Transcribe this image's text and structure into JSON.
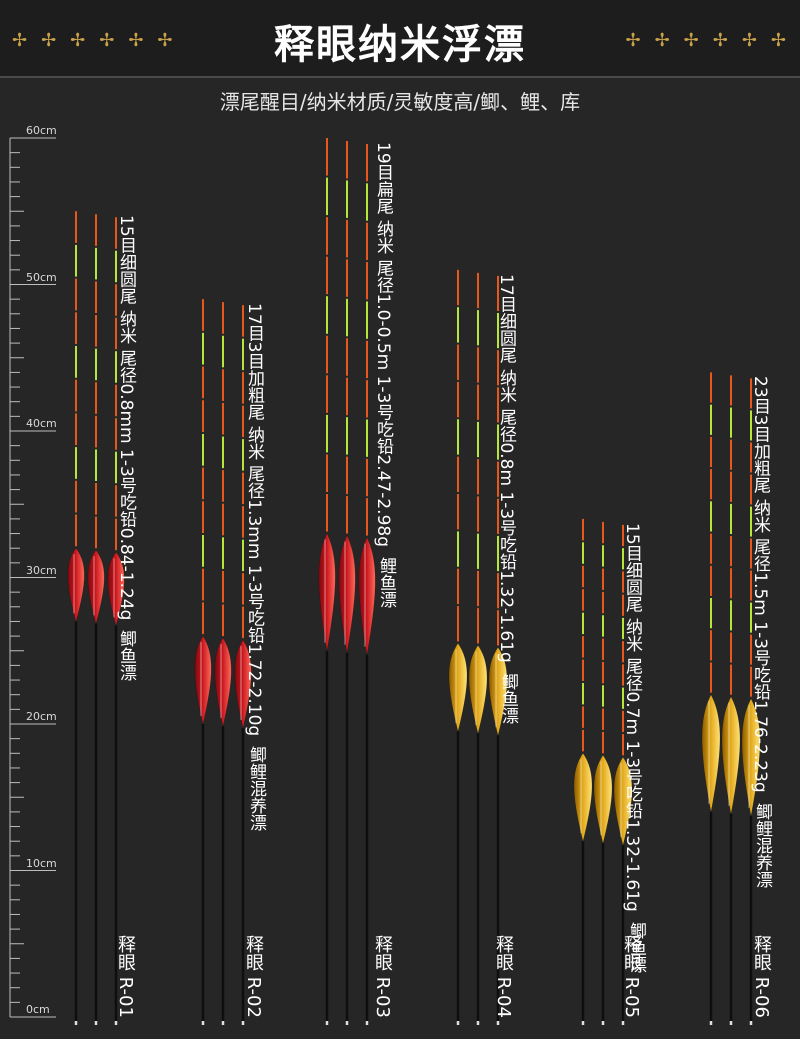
{
  "header": {
    "title": "释眼纳米浮漂",
    "subtitle": "漂尾醒目/纳米材质/灵敏度高/鲫、鲤、库",
    "deco_icon": "sparkle-cross-icon"
  },
  "ruler": {
    "unit": "cm",
    "labels": [
      "60cm",
      "50cm",
      "40cm",
      "30cm",
      "20cm",
      "10cm",
      "0cm"
    ],
    "min": 0,
    "max": 60
  },
  "colors": {
    "red_body": "#c8141c",
    "gold_body": "#e0a616",
    "tip_orange": "#e8581c",
    "tip_green": "#b6e63a",
    "stem": "#0e0e0e"
  },
  "products": [
    {
      "code": "释眼 R-01",
      "spec": "15目细圆尾 纳米 尾径0.8mm 1-3号吃铅0.84-1.24g",
      "type": "鲫鱼漂",
      "color": "red",
      "tip_top_cm": 55,
      "body_top_cm": 32,
      "body_bottom_cm": 27
    },
    {
      "code": "释眼 R-02",
      "spec": "17目3目加粗尾 纳米 尾径1.3mm 1-3号吃铅1.72-2.10g",
      "type": "鲫鲤混养漂",
      "color": "red",
      "tip_top_cm": 49,
      "body_top_cm": 26,
      "body_bottom_cm": 20
    },
    {
      "code": "释眼 R-03",
      "spec": "19目扁尾 纳米 尾径1.0-0.5m 1-3号吃铅2.47-2.98g",
      "type": "鲤鱼漂",
      "color": "red",
      "tip_top_cm": 60,
      "body_top_cm": 33,
      "body_bottom_cm": 25
    },
    {
      "code": "释眼 R-04",
      "spec": "17目细圆尾 纳米 尾径0.8m 1-3号吃铅1.32-1.61g",
      "type": "鲫鱼漂",
      "color": "gold",
      "tip_top_cm": 51,
      "body_top_cm": 25.5,
      "body_bottom_cm": 19.5
    },
    {
      "code": "释眼 R-05",
      "spec": "15目细圆尾 纳米 尾径0.7m 1-3号吃铅1.32-1.61g",
      "type": "鲫鱼漂",
      "color": "gold",
      "tip_top_cm": 34,
      "body_top_cm": 18,
      "body_bottom_cm": 12
    },
    {
      "code": "释眼 R-06",
      "spec": "23目3目加粗尾 纳米 尾径1.5m 1-3号吃铅1.76-2.23g",
      "type": "鲫鲤混养漂",
      "color": "gold",
      "tip_top_cm": 44,
      "body_top_cm": 22,
      "body_bottom_cm": 14
    }
  ]
}
